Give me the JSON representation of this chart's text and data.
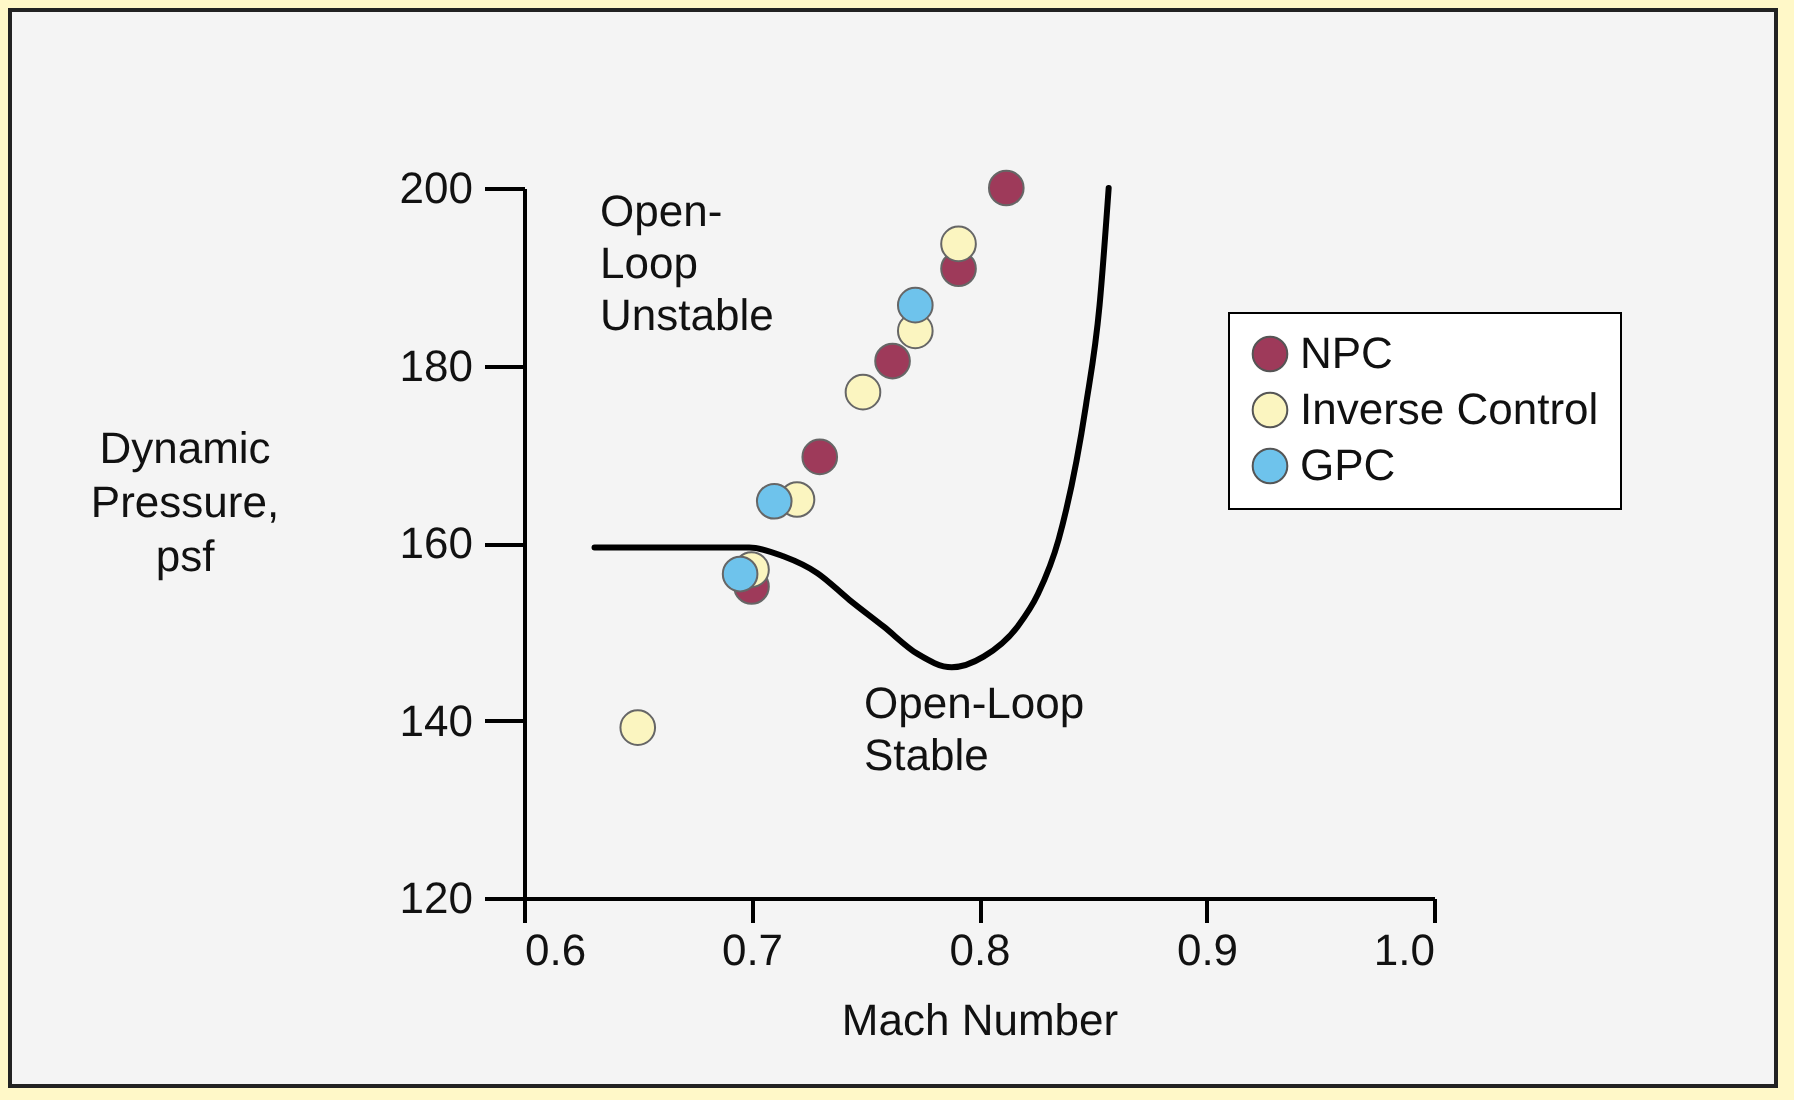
{
  "chart_data": {
    "type": "scatter",
    "xlabel": "Mach Number",
    "ylabel": "Dynamic\nPressure,\npsf",
    "xlim": [
      0.6,
      1.0
    ],
    "xticks": [
      0.6,
      0.7,
      0.8,
      0.9,
      {
        "value": 1.0,
        "label": "1.0"
      }
    ],
    "ylim": [
      120,
      200
    ],
    "yticks": [
      120,
      140,
      160,
      180,
      200
    ],
    "grid": false,
    "legend": "right",
    "marker": "circle",
    "series": [
      {
        "name": "NPC",
        "color": "#9e3a5a",
        "x": [
          0.812,
          0.791,
          0.762,
          0.73,
          0.7
        ],
        "values": [
          200,
          190.9,
          180.5,
          169.7,
          155.1
        ]
      },
      {
        "name": "Inverse Control",
        "color": "#fbf5c0",
        "x": [
          0.791,
          0.772,
          0.749,
          0.72,
          0.7,
          0.65
        ],
        "values": [
          193.7,
          183.9,
          177,
          164.9,
          157,
          139.2
        ]
      },
      {
        "name": "GPC",
        "color": "#6ec3ec",
        "x": [
          0.772,
          0.71,
          0.695
        ],
        "values": [
          186.8,
          164.7,
          156.5
        ]
      },
      {
        "type": "line",
        "color": "#000000",
        "line_style": "solid",
        "marker": "none",
        "x": [
          0.631,
          0.699,
          0.714,
          0.729,
          0.743,
          0.758,
          0.773,
          0.788,
          0.802,
          0.817,
          0.826,
          0.835,
          0.847,
          0.853,
          0.857
        ],
        "values": [
          159.5,
          159.5,
          158.5,
          156.6,
          153.6,
          150.6,
          147.5,
          146,
          147.2,
          150.6,
          154.3,
          160.4,
          175.5,
          186.8,
          200
        ]
      }
    ],
    "annotations": [
      "Open-\nLoop\nUnstable",
      "Open-Loop\nStable"
    ]
  }
}
